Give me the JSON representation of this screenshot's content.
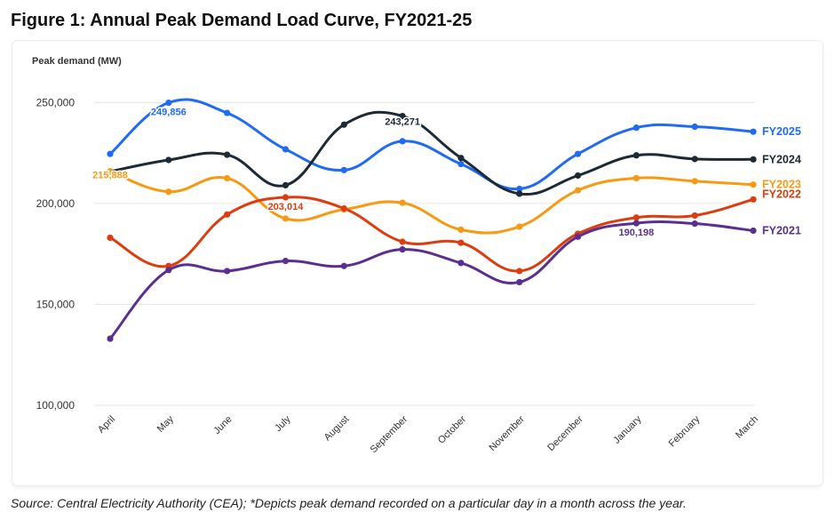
{
  "figure_title": "Figure 1: Annual Peak Demand Load Curve, FY2021-25",
  "source_note": "Source: Central Electricity Authority (CEA); *Depicts peak demand recorded on a particular day in a month across the year.",
  "chart_data": {
    "type": "line",
    "title": "Figure 1: Annual Peak Demand Load Curve, FY2021-25",
    "ylabel": "Peak demand (MW)",
    "xlabel": "",
    "ylim": [
      100000,
      262000
    ],
    "yticks": [
      100000,
      150000,
      200000,
      250000
    ],
    "ytick_labels": [
      "100,000",
      "150,000",
      "200,000",
      "250,000"
    ],
    "categories": [
      "April",
      "May",
      "June",
      "July",
      "August",
      "September",
      "October",
      "November",
      "December",
      "January",
      "February",
      "March"
    ],
    "series": [
      {
        "name": "FY2025",
        "color": "#1f6bf2",
        "values": [
          224500,
          249856,
          244800,
          226800,
          216500,
          230800,
          219500,
          207200,
          224500,
          237500,
          238000,
          235500
        ]
      },
      {
        "name": "FY2024",
        "color": "#1c2a36",
        "values": [
          215800,
          221500,
          224100,
          209000,
          239000,
          243271,
          222500,
          204800,
          213800,
          223800,
          222000,
          221800
        ]
      },
      {
        "name": "FY2023",
        "color": "#f79a12",
        "values": [
          215888,
          205800,
          212500,
          192500,
          197000,
          200300,
          187000,
          188500,
          206500,
          212500,
          211000,
          209300
        ]
      },
      {
        "name": "FY2022",
        "color": "#dc3d10",
        "values": [
          183000,
          169000,
          194500,
          203014,
          197500,
          181000,
          180500,
          166500,
          185000,
          193000,
          194000,
          202000
        ]
      },
      {
        "name": "FY2021",
        "color": "#5b2e91",
        "values": [
          133000,
          167000,
          166500,
          171500,
          169000,
          177200,
          170500,
          161000,
          183500,
          190198,
          190000,
          186500
        ]
      }
    ],
    "annotations": [
      {
        "text": "249,856",
        "series": "FY2025",
        "category": "May"
      },
      {
        "text": "243,271",
        "series": "FY2024",
        "category": "September"
      },
      {
        "text": "215,888",
        "series": "FY2023",
        "category": "April"
      },
      {
        "text": "203,014",
        "series": "FY2022",
        "category": "July"
      },
      {
        "text": "190,198",
        "series": "FY2021",
        "category": "January"
      }
    ],
    "legend": "inline labels at right end of each line",
    "grid": true
  }
}
